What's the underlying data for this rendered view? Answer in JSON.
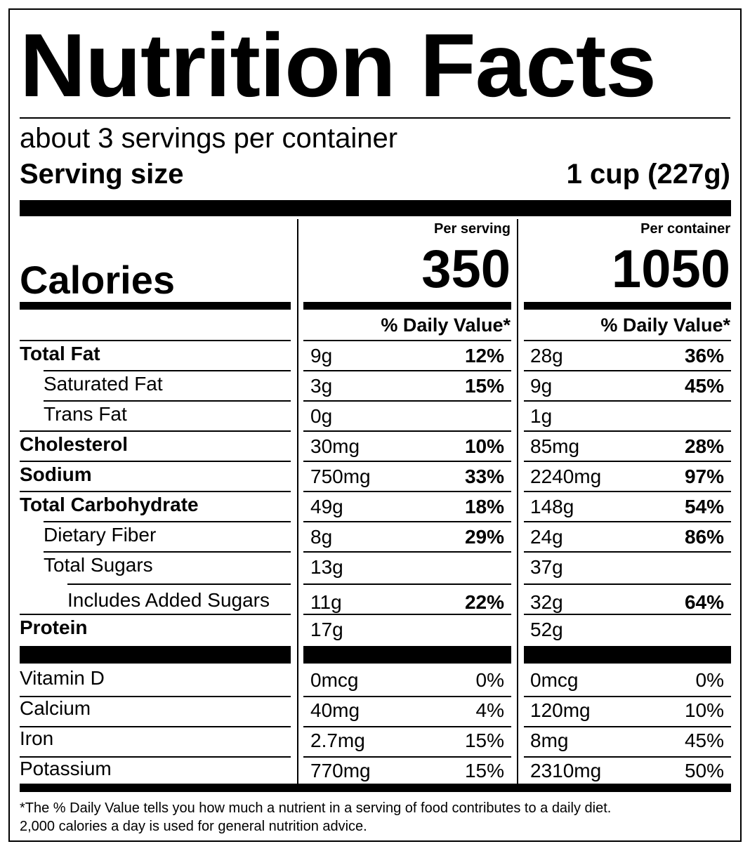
{
  "title": "Nutrition Facts",
  "servings_per_container": "about 3 servings per container",
  "serving_size_label": "Serving size",
  "serving_size_value": "1 cup (227g)",
  "columns": {
    "per_serving": "Per serving",
    "per_container": "Per container"
  },
  "calories": {
    "label": "Calories",
    "per_serving": "350",
    "per_container": "1050"
  },
  "daily_value_header": "% Daily Value*",
  "nutrients": [
    {
      "name": "Total Fat",
      "bold": true,
      "indent": 0,
      "serving_amount": "9g",
      "serving_dv": "12%",
      "container_amount": "28g",
      "container_dv": "36%"
    },
    {
      "name": "Saturated Fat",
      "bold": false,
      "indent": 1,
      "serving_amount": "3g",
      "serving_dv": "15%",
      "container_amount": "9g",
      "container_dv": "45%"
    },
    {
      "name": "Trans Fat",
      "bold": false,
      "indent": 1,
      "serving_amount": "0g",
      "serving_dv": "",
      "container_amount": "1g",
      "container_dv": ""
    },
    {
      "name": "Cholesterol",
      "bold": true,
      "indent": 0,
      "serving_amount": "30mg",
      "serving_dv": "10%",
      "container_amount": "85mg",
      "container_dv": "28%"
    },
    {
      "name": "Sodium",
      "bold": true,
      "indent": 0,
      "serving_amount": "750mg",
      "serving_dv": "33%",
      "container_amount": "2240mg",
      "container_dv": "97%"
    },
    {
      "name": "Total Carbohydrate",
      "bold": true,
      "indent": 0,
      "serving_amount": "49g",
      "serving_dv": "18%",
      "container_amount": "148g",
      "container_dv": "54%"
    },
    {
      "name": "Dietary Fiber",
      "bold": false,
      "indent": 1,
      "serving_amount": "8g",
      "serving_dv": "29%",
      "container_amount": "24g",
      "container_dv": "86%"
    },
    {
      "name": "Total Sugars",
      "bold": false,
      "indent": 1,
      "serving_amount": "13g",
      "serving_dv": "",
      "container_amount": "37g",
      "container_dv": ""
    },
    {
      "name": "Includes Added Sugars",
      "bold": false,
      "indent": 2,
      "serving_amount": "11g",
      "serving_dv": "22%",
      "container_amount": "32g",
      "container_dv": "64%"
    },
    {
      "name": "Protein",
      "bold": true,
      "indent": 0,
      "serving_amount": "17g",
      "serving_dv": "",
      "container_amount": "52g",
      "container_dv": ""
    }
  ],
  "vitamins": [
    {
      "name": "Vitamin D",
      "serving_amount": "0mcg",
      "serving_dv": "0%",
      "container_amount": "0mcg",
      "container_dv": "0%"
    },
    {
      "name": "Calcium",
      "serving_amount": "40mg",
      "serving_dv": "4%",
      "container_amount": "120mg",
      "container_dv": "10%"
    },
    {
      "name": "Iron",
      "serving_amount": "2.7mg",
      "serving_dv": "15%",
      "container_amount": "8mg",
      "container_dv": "45%"
    },
    {
      "name": "Potassium",
      "serving_amount": "770mg",
      "serving_dv": "15%",
      "container_amount": "2310mg",
      "container_dv": "50%"
    }
  ],
  "footnote": {
    "line1": "*The % Daily Value tells you how much a nutrient in a serving of food contributes to a daily diet.",
    "line2": "2,000 calories a day is used for general nutrition advice."
  }
}
